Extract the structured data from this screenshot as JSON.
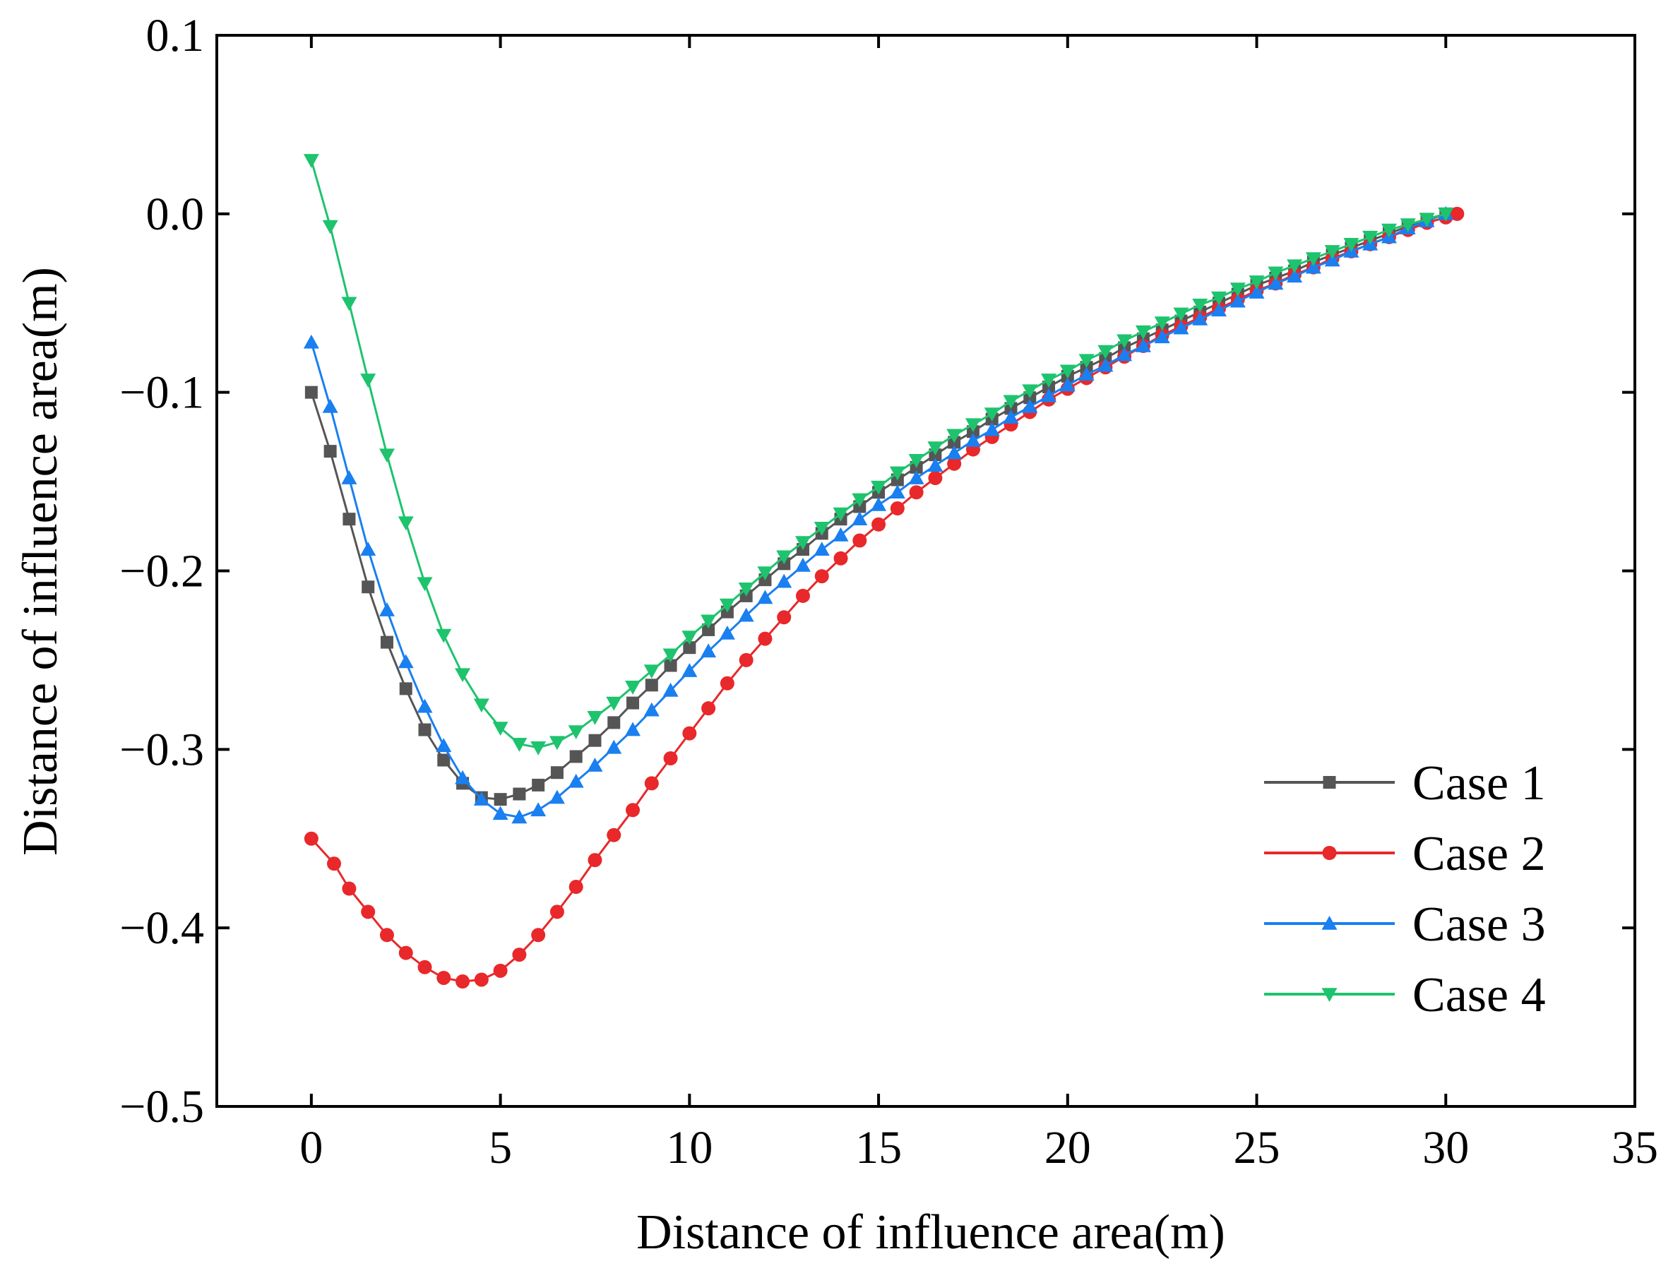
{
  "chart_data": {
    "type": "line",
    "title": "",
    "xlabel": "Distance of influence area(m)",
    "ylabel": "Distance of influence area(m)",
    "xlim": [
      -2.5,
      35
    ],
    "ylim": [
      -0.5,
      0.1
    ],
    "xticks": [
      0,
      5,
      10,
      15,
      20,
      25,
      30,
      35
    ],
    "yticks": [
      0.1,
      0.0,
      -0.1,
      -0.2,
      -0.3,
      -0.4,
      -0.5
    ],
    "xtick_labels": [
      "0",
      "5",
      "10",
      "15",
      "20",
      "25",
      "30",
      "35"
    ],
    "ytick_labels": [
      "0.1",
      "0.0",
      "−0.1",
      "−0.2",
      "−0.3",
      "−0.4",
      "−0.5"
    ],
    "grid": false,
    "legend_position": "bottom-right",
    "series": [
      {
        "name": "Case 1",
        "color": "#555555",
        "marker": "square",
        "x": [
          0,
          0.5,
          1,
          1.5,
          2,
          2.5,
          3,
          3.5,
          4,
          4.5,
          5,
          5.5,
          6,
          6.5,
          7,
          7.5,
          8,
          8.5,
          9,
          9.5,
          10,
          10.5,
          11,
          11.5,
          12,
          12.5,
          13,
          13.5,
          14,
          14.5,
          15,
          15.5,
          16,
          16.5,
          17,
          17.5,
          18,
          18.5,
          19,
          19.5,
          20,
          20.5,
          21,
          21.5,
          22,
          22.5,
          23,
          23.5,
          24,
          24.5,
          25,
          25.5,
          26,
          26.5,
          27,
          27.5,
          28,
          28.5,
          29,
          29.5,
          30
        ],
        "y": [
          -0.1,
          -0.133,
          -0.171,
          -0.209,
          -0.24,
          -0.266,
          -0.289,
          -0.306,
          -0.319,
          -0.327,
          -0.328,
          -0.325,
          -0.32,
          -0.313,
          -0.304,
          -0.295,
          -0.285,
          -0.274,
          -0.264,
          -0.253,
          -0.243,
          -0.233,
          -0.223,
          -0.214,
          -0.205,
          -0.196,
          -0.188,
          -0.179,
          -0.171,
          -0.164,
          -0.156,
          -0.149,
          -0.142,
          -0.135,
          -0.128,
          -0.122,
          -0.115,
          -0.109,
          -0.103,
          -0.097,
          -0.091,
          -0.086,
          -0.081,
          -0.075,
          -0.07,
          -0.065,
          -0.06,
          -0.055,
          -0.05,
          -0.045,
          -0.04,
          -0.036,
          -0.032,
          -0.027,
          -0.023,
          -0.019,
          -0.015,
          -0.011,
          -0.007,
          -0.003,
          0.0
        ]
      },
      {
        "name": "Case 2",
        "color": "#e8282a",
        "marker": "circle",
        "x": [
          0,
          0.6,
          1,
          1.5,
          2,
          2.5,
          3,
          3.5,
          4,
          4.5,
          5,
          5.5,
          6,
          6.5,
          7,
          7.5,
          8,
          8.5,
          9,
          9.5,
          10,
          10.5,
          11,
          11.5,
          12,
          12.5,
          13,
          13.5,
          14,
          14.5,
          15,
          15.5,
          16,
          16.5,
          17,
          17.5,
          18,
          18.5,
          19,
          19.5,
          20,
          20.5,
          21,
          21.5,
          22,
          22.5,
          23,
          23.5,
          24,
          24.5,
          25,
          25.5,
          26,
          26.5,
          27,
          27.5,
          28,
          28.5,
          29,
          29.5,
          30,
          30.3
        ],
        "y": [
          -0.35,
          -0.364,
          -0.378,
          -0.391,
          -0.404,
          -0.414,
          -0.422,
          -0.428,
          -0.43,
          -0.429,
          -0.424,
          -0.415,
          -0.404,
          -0.391,
          -0.377,
          -0.362,
          -0.348,
          -0.334,
          -0.319,
          -0.305,
          -0.291,
          -0.277,
          -0.263,
          -0.25,
          -0.238,
          -0.226,
          -0.214,
          -0.203,
          -0.193,
          -0.183,
          -0.174,
          -0.165,
          -0.156,
          -0.148,
          -0.14,
          -0.132,
          -0.125,
          -0.118,
          -0.111,
          -0.104,
          -0.098,
          -0.092,
          -0.086,
          -0.08,
          -0.074,
          -0.068,
          -0.063,
          -0.058,
          -0.053,
          -0.048,
          -0.043,
          -0.039,
          -0.034,
          -0.03,
          -0.025,
          -0.021,
          -0.017,
          -0.013,
          -0.009,
          -0.005,
          -0.002,
          0.0
        ]
      },
      {
        "name": "Case 3",
        "color": "#1a7ff0",
        "marker": "triangle-up",
        "x": [
          0,
          0.5,
          1,
          1.5,
          2,
          2.5,
          3,
          3.5,
          4,
          4.5,
          5,
          5.5,
          6,
          6.5,
          7,
          7.5,
          8,
          8.5,
          9,
          9.5,
          10,
          10.5,
          11,
          11.5,
          12,
          12.5,
          13,
          13.5,
          14,
          14.5,
          15,
          15.5,
          16,
          16.5,
          17,
          17.5,
          18,
          18.5,
          19,
          19.5,
          20,
          20.5,
          21,
          21.5,
          22,
          22.5,
          23,
          23.5,
          24,
          24.5,
          25,
          25.5,
          26,
          26.5,
          27,
          27.5,
          28,
          28.5,
          29,
          29.5,
          30
        ],
        "y": [
          -0.072,
          -0.108,
          -0.148,
          -0.188,
          -0.222,
          -0.251,
          -0.276,
          -0.298,
          -0.316,
          -0.328,
          -0.336,
          -0.338,
          -0.334,
          -0.327,
          -0.318,
          -0.309,
          -0.299,
          -0.289,
          -0.278,
          -0.267,
          -0.256,
          -0.245,
          -0.235,
          -0.225,
          -0.215,
          -0.206,
          -0.197,
          -0.188,
          -0.18,
          -0.171,
          -0.163,
          -0.156,
          -0.148,
          -0.141,
          -0.134,
          -0.127,
          -0.121,
          -0.114,
          -0.108,
          -0.102,
          -0.096,
          -0.09,
          -0.085,
          -0.079,
          -0.074,
          -0.069,
          -0.064,
          -0.059,
          -0.054,
          -0.049,
          -0.044,
          -0.039,
          -0.035,
          -0.03,
          -0.026,
          -0.021,
          -0.017,
          -0.013,
          -0.008,
          -0.004,
          0.0
        ]
      },
      {
        "name": "Case 4",
        "color": "#1ec36e",
        "marker": "triangle-down",
        "x": [
          0,
          0.5,
          1,
          1.5,
          2,
          2.5,
          3,
          3.5,
          4,
          4.5,
          5,
          5.5,
          6,
          6.5,
          7,
          7.5,
          8,
          8.5,
          9,
          9.5,
          10,
          10.5,
          11,
          11.5,
          12,
          12.5,
          13,
          13.5,
          14,
          14.5,
          15,
          15.5,
          16,
          16.5,
          17,
          17.5,
          18,
          18.5,
          19,
          19.5,
          20,
          20.5,
          21,
          21.5,
          22,
          22.5,
          23,
          23.5,
          24,
          24.5,
          25,
          25.5,
          26,
          26.5,
          27,
          27.5,
          28,
          28.5,
          29,
          29.5,
          30
        ],
        "y": [
          0.03,
          -0.007,
          -0.05,
          -0.093,
          -0.135,
          -0.173,
          -0.207,
          -0.236,
          -0.258,
          -0.275,
          -0.288,
          -0.297,
          -0.299,
          -0.296,
          -0.29,
          -0.282,
          -0.274,
          -0.265,
          -0.256,
          -0.247,
          -0.237,
          -0.228,
          -0.219,
          -0.21,
          -0.201,
          -0.192,
          -0.184,
          -0.176,
          -0.168,
          -0.16,
          -0.153,
          -0.145,
          -0.138,
          -0.131,
          -0.124,
          -0.118,
          -0.112,
          -0.105,
          -0.099,
          -0.093,
          -0.088,
          -0.082,
          -0.077,
          -0.071,
          -0.066,
          -0.061,
          -0.056,
          -0.051,
          -0.047,
          -0.042,
          -0.038,
          -0.033,
          -0.029,
          -0.025,
          -0.021,
          -0.017,
          -0.013,
          -0.009,
          -0.006,
          -0.003,
          0.0
        ]
      }
    ]
  }
}
